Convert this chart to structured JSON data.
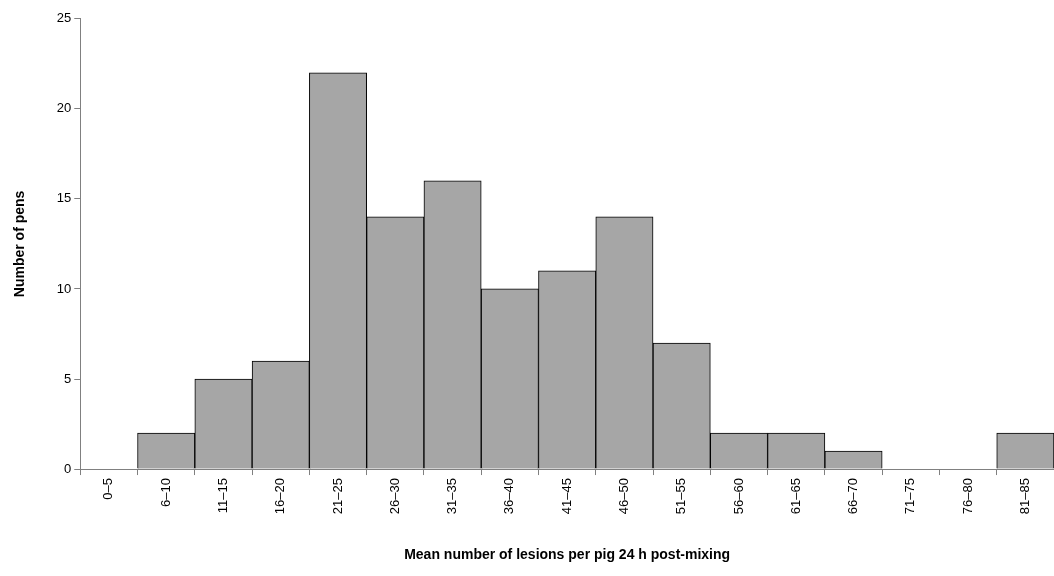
{
  "chart_data": {
    "type": "bar",
    "categories": [
      "0–5",
      "6–10",
      "11–15",
      "16–20",
      "21–25",
      "26–30",
      "31–35",
      "36–40",
      "41–45",
      "46–50",
      "51–55",
      "56–60",
      "61–65",
      "66–70",
      "71–75",
      "76–80",
      "81–85"
    ],
    "values": [
      0,
      2,
      5,
      6,
      22,
      14,
      16,
      10,
      11,
      14,
      7,
      2,
      2,
      1,
      0,
      0,
      2
    ],
    "color": "#a6a6a6",
    "xlabel": "Mean number of lesions per pig 24 h post-mixing",
    "ylabel": "Number of pens",
    "ylim": [
      0,
      25
    ],
    "yticks": [
      0,
      5,
      10,
      15,
      20,
      25
    ],
    "grid": false,
    "legend": false
  }
}
